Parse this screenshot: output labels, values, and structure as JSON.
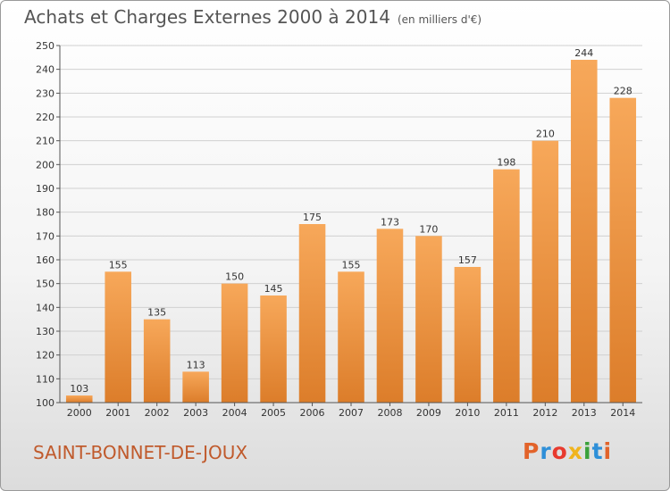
{
  "header": {
    "title": "Achats et Charges Externes 2000 à 2014",
    "subtitle": "(en milliers d'€)"
  },
  "footer": {
    "location": "SAINT-BONNET-DE-JOUX",
    "logo_text": "Proxiti",
    "logo_colors": [
      "#e2632a",
      "#2e8fd8",
      "#e83a2e",
      "#f0b41e",
      "#3aa13a",
      "#2e8fd8",
      "#e2632a"
    ]
  },
  "colors": {
    "bar_light": "#f7a85a",
    "bar_dark": "#dc7d2a",
    "grid": "#d0d0d0",
    "axis": "#555555"
  },
  "chart_data": {
    "type": "bar",
    "title": "Achats et Charges Externes 2000 à 2014",
    "subtitle": "(en milliers d'€)",
    "categories": [
      "2000",
      "2001",
      "2002",
      "2003",
      "2004",
      "2005",
      "2006",
      "2007",
      "2008",
      "2009",
      "2010",
      "2011",
      "2012",
      "2013",
      "2014"
    ],
    "values": [
      103,
      155,
      135,
      113,
      150,
      145,
      175,
      155,
      173,
      170,
      157,
      198,
      210,
      244,
      228
    ],
    "ylim": [
      100,
      250
    ],
    "yticks": [
      100,
      110,
      120,
      130,
      140,
      150,
      160,
      170,
      180,
      190,
      200,
      210,
      220,
      230,
      240,
      250
    ],
    "grid": true,
    "data_labels": true
  }
}
